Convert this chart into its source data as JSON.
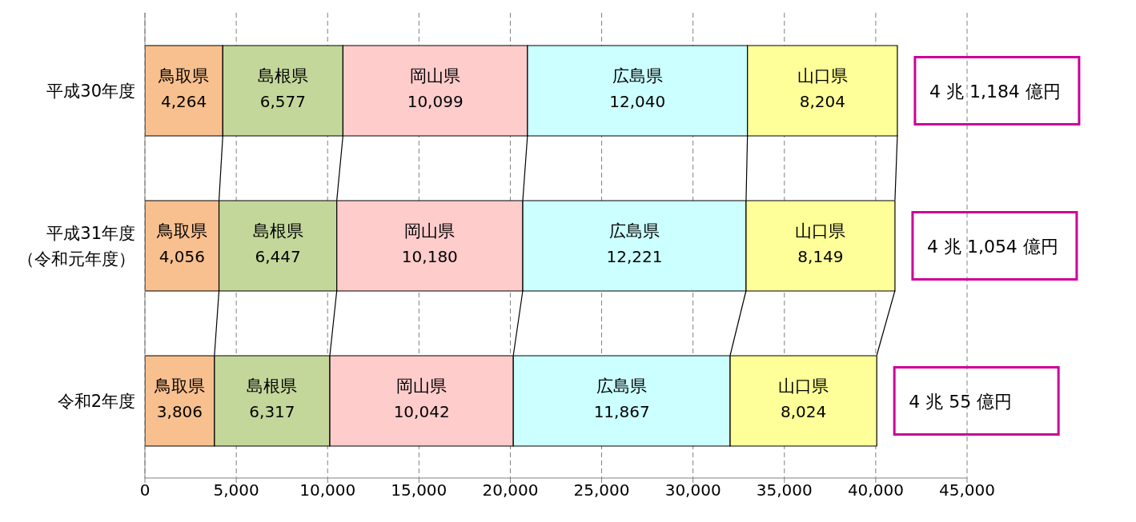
{
  "chart_data": {
    "type": "bar",
    "orientation": "horizontal",
    "stacked": true,
    "categories": [
      "平成30年度",
      "平成31年度（令和元年度）",
      "令和2年度"
    ],
    "series": [
      {
        "name": "鳥取県",
        "color": "#f8c08f",
        "values": [
          4264,
          4056,
          3806
        ],
        "value_labels": [
          "4,264",
          "4,056",
          "3,806"
        ]
      },
      {
        "name": "島根県",
        "color": "#c4d79b",
        "values": [
          6577,
          6447,
          6317
        ],
        "value_labels": [
          "6,577",
          "6,447",
          "6,317"
        ]
      },
      {
        "name": "岡山県",
        "color": "#ffcccc",
        "values": [
          10099,
          10180,
          10042
        ],
        "value_labels": [
          "10,099",
          "10,180",
          "10,042"
        ]
      },
      {
        "name": "広島県",
        "color": "#ccffff",
        "values": [
          12040,
          12221,
          11867
        ],
        "value_labels": [
          "12,040",
          "12,221",
          "11,867"
        ]
      },
      {
        "name": "山口県",
        "color": "#ffff99",
        "values": [
          8204,
          8149,
          8024
        ],
        "value_labels": [
          "8,204",
          "8,149",
          "8,024"
        ]
      }
    ],
    "xlim": [
      0,
      45000
    ],
    "xticks": [
      0,
      {
        "value": 5000,
        "label": "5,000"
      },
      {
        "value": 10000,
        "label": "10,000"
      },
      {
        "value": 15000,
        "label": "15,000"
      },
      {
        "value": 20000,
        "label": "20,000"
      },
      {
        "value": 25000,
        "label": "25,000"
      },
      {
        "value": 30000,
        "label": "30,000"
      },
      {
        "value": 35000,
        "label": "35,000"
      },
      {
        "value": 40000,
        "label": "40,000"
      },
      {
        "value": 45000,
        "label": "45,000"
      }
    ],
    "grid": "x",
    "legend": false,
    "totals": [
      "4 兆 1,184 億円",
      "4 兆 1,054 億円",
      "4 兆 55 億円"
    ]
  }
}
